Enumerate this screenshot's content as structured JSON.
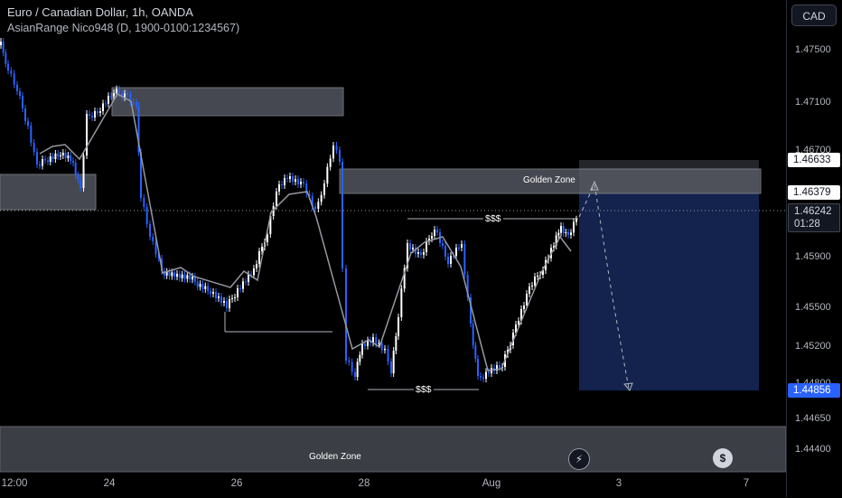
{
  "header": {
    "title": "Euro / Canadian Dollar, 1h, OANDA",
    "indicator": "AsianRange Nico948 (D, 1900-0100:1234567)"
  },
  "currency": "CAD",
  "price_axis": {
    "ticks": [
      "1.47500",
      "1.47100",
      "1.46700",
      "1.45900",
      "1.45500",
      "1.45200",
      "1.44800",
      "1.44650",
      "1.44400"
    ]
  },
  "price_labels": {
    "upper": "1.46633",
    "middle": "1.46379",
    "current": "1.46242",
    "countdown": "01:28",
    "lower": "1.44856"
  },
  "time_axis": {
    "ticks": [
      "12:00",
      "24",
      "26",
      "28",
      "Aug",
      "3",
      "7"
    ]
  },
  "annotations": {
    "zone_upper": "Golden Zone",
    "zone_lower": "Golden Zone",
    "liquidity_high": "$$$",
    "liquidity_low": "$$$"
  },
  "colors": {
    "candle": "#2962ff",
    "wick": "#ffffff",
    "zone_fill": "#5d606b",
    "target_box": "#1a3266",
    "current_label": "#ffffff",
    "lower_label": "#2962ff"
  },
  "icons": [
    "lightning-icon",
    "dollar-icon"
  ]
}
